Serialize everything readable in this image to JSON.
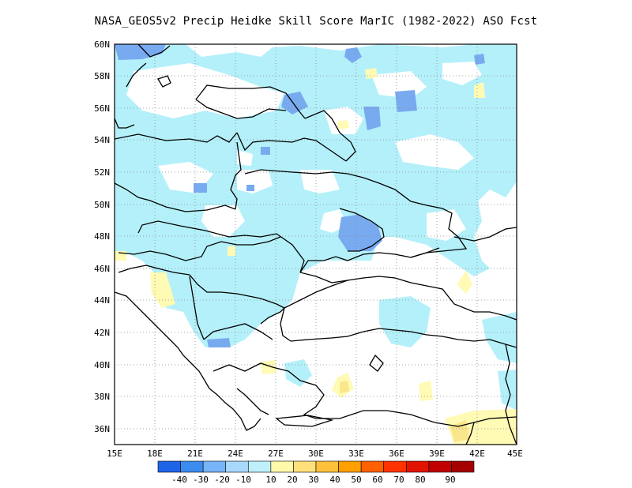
{
  "title": "NASA_GEOS5v2 Precip Heidke Skill Score MarIC (1982-2022) ASO Fcst",
  "map": {
    "lon_range": [
      15,
      45
    ],
    "lat_range": [
      35,
      60
    ],
    "lat_labels": [
      "60N",
      "58N",
      "56N",
      "54N",
      "52N",
      "50N",
      "48N",
      "46N",
      "44N",
      "42N",
      "40N",
      "38N",
      "36N"
    ],
    "lon_labels": [
      "15E",
      "18E",
      "21E",
      "24E",
      "27E",
      "30E",
      "33E",
      "36E",
      "39E",
      "42E",
      "45E"
    ],
    "grid": true
  },
  "colorbar": {
    "labels": [
      "-40",
      "-30",
      "-20",
      "-10",
      "10",
      "20",
      "30",
      "40",
      "50",
      "60",
      "70",
      "80",
      "90"
    ],
    "colors": [
      "#1e64e6",
      "#3c8cf0",
      "#78b4f8",
      "#a8d8fc",
      "#bef0fc",
      "#fffaaa",
      "#ffe07a",
      "#ffc03c",
      "#ffa000",
      "#ff6000",
      "#ff3200",
      "#e11400",
      "#c00000",
      "#a50000"
    ]
  },
  "colors": {
    "light_blue": "#b4f0fa",
    "mid_blue": "#78aaf0",
    "dark_blue": "#3c78dc",
    "light_yellow": "#fffab4",
    "yellow": "#fae68c"
  }
}
